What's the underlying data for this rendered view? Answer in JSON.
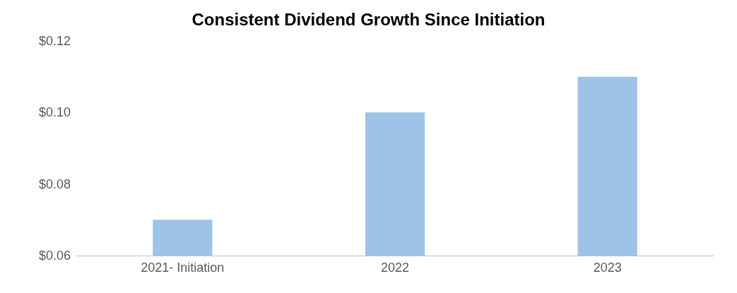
{
  "chart_data": {
    "type": "bar",
    "title": "Consistent Dividend Growth Since Initiation",
    "categories": [
      "2021- Initiation",
      "2022",
      "2023"
    ],
    "values": [
      0.07,
      0.1,
      0.11
    ],
    "color": "#9dc3e6",
    "ylim": [
      0.06,
      0.12
    ],
    "yticks": [
      {
        "value": 0.06,
        "label": "$0.06"
      },
      {
        "value": 0.08,
        "label": "$0.08"
      },
      {
        "value": 0.1,
        "label": "$0.10"
      },
      {
        "value": 0.12,
        "label": "$0.12"
      }
    ],
    "grid": false
  }
}
